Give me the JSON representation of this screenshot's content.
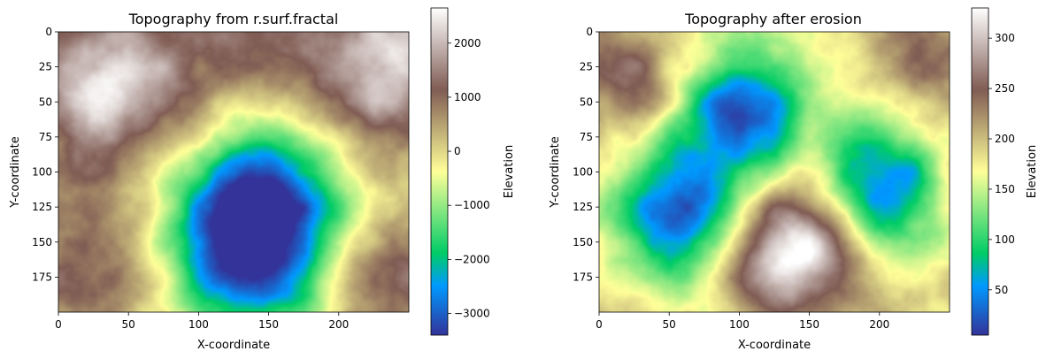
{
  "chart_data": [
    {
      "type": "heatmap",
      "title": "Topography from r.surf.fractal",
      "xlabel": "X-coordinate",
      "ylabel": "Y-coordinate",
      "xlim": [
        0,
        250
      ],
      "ylim": [
        0,
        200
      ],
      "y_inverted": true,
      "grid": false,
      "x_ticks": [
        "0",
        "50",
        "100",
        "150",
        "200"
      ],
      "y_ticks": [
        "0",
        "25",
        "50",
        "75",
        "100",
        "125",
        "150",
        "175"
      ],
      "colormap": "terrain",
      "colorbar": {
        "label": "Elevation",
        "range": [
          -3400,
          2650
        ],
        "ticks": [
          "2000",
          "1000",
          "0",
          "−1000",
          "−2000",
          "−3000"
        ],
        "tick_values": [
          2000,
          1000,
          0,
          -1000,
          -2000,
          -3000
        ]
      },
      "features": [
        {
          "kind": "peak",
          "x": 30,
          "y": 35,
          "value": 2500
        },
        {
          "kind": "peak",
          "x": 235,
          "y": 25,
          "value": 2300
        },
        {
          "kind": "peak",
          "x": 10,
          "y": 180,
          "value": 1200
        },
        {
          "kind": "peak",
          "x": 235,
          "y": 180,
          "value": 1400
        },
        {
          "kind": "peak",
          "x": 135,
          "y": 5,
          "value": 1000
        },
        {
          "kind": "basin",
          "x": 140,
          "y": 160,
          "value": -3200
        },
        {
          "kind": "basin",
          "x": 150,
          "y": 110,
          "value": -2300
        }
      ]
    },
    {
      "type": "heatmap",
      "title": "Topography after erosion",
      "xlabel": "X-coordinate",
      "ylabel": "Y-coordinate",
      "xlim": [
        0,
        250
      ],
      "ylim": [
        0,
        200
      ],
      "y_inverted": true,
      "grid": false,
      "x_ticks": [
        "0",
        "50",
        "100",
        "150",
        "200"
      ],
      "y_ticks": [
        "0",
        "25",
        "50",
        "75",
        "100",
        "125",
        "150",
        "175"
      ],
      "colormap": "terrain",
      "colorbar": {
        "label": "Elevation",
        "range": [
          5,
          330
        ],
        "ticks": [
          "300",
          "250",
          "200",
          "150",
          "100",
          "50"
        ],
        "tick_values": [
          300,
          250,
          200,
          150,
          100,
          50
        ]
      },
      "features": [
        {
          "kind": "peak",
          "x": 140,
          "y": 160,
          "value": 325
        },
        {
          "kind": "ridge",
          "x": 150,
          "y": 120,
          "value": 220
        },
        {
          "kind": "peak",
          "x": 20,
          "y": 30,
          "value": 250
        },
        {
          "kind": "peak",
          "x": 240,
          "y": 20,
          "value": 240
        },
        {
          "kind": "valley",
          "x": 100,
          "y": 60,
          "value": 20
        },
        {
          "kind": "valley",
          "x": 195,
          "y": 110,
          "value": 20
        },
        {
          "kind": "valley",
          "x": 55,
          "y": 130,
          "value": 30
        }
      ]
    }
  ]
}
